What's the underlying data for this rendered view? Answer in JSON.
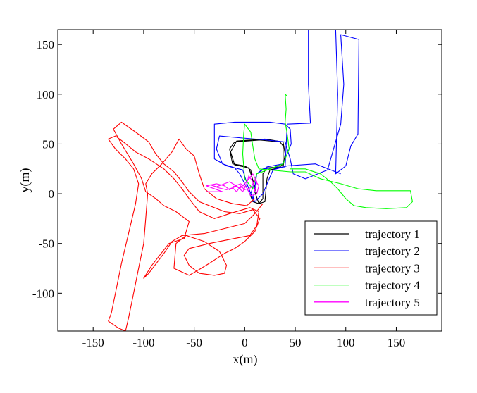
{
  "chart_data": {
    "type": "line",
    "xlabel": "x(m)",
    "ylabel": "y(m)",
    "xlim": [
      -185,
      195
    ],
    "ylim": [
      -138,
      165
    ],
    "xticks": [
      -150,
      -100,
      -50,
      0,
      50,
      100,
      150
    ],
    "yticks": [
      -100,
      -50,
      0,
      50,
      100,
      150
    ],
    "xtick_labels": [
      "-150",
      "-100",
      "-50",
      "0",
      "50",
      "100",
      "150"
    ],
    "ytick_labels": [
      "-100",
      "-50",
      "0",
      "50",
      "100",
      "150"
    ],
    "grid": false,
    "legend_position": "bottom-right",
    "series": [
      {
        "name": "trajectory 1",
        "color": "#000000",
        "points": [
          [
            5,
            0
          ],
          [
            8,
            -8
          ],
          [
            14,
            -10
          ],
          [
            18,
            -5
          ],
          [
            18,
            20
          ],
          [
            22,
            26
          ],
          [
            35,
            27
          ],
          [
            38,
            30
          ],
          [
            38,
            48
          ],
          [
            35,
            52
          ],
          [
            15,
            54
          ],
          [
            -10,
            52
          ],
          [
            -15,
            45
          ],
          [
            -12,
            30
          ],
          [
            0,
            28
          ],
          [
            6,
            24
          ],
          [
            8,
            12
          ],
          [
            10,
            2
          ],
          [
            14,
            -10
          ],
          [
            20,
            -8
          ],
          [
            22,
            15
          ],
          [
            25,
            24
          ],
          [
            38,
            27
          ],
          [
            40,
            40
          ],
          [
            38,
            52
          ],
          [
            20,
            55
          ],
          [
            -8,
            53
          ],
          [
            -14,
            42
          ],
          [
            -10,
            29
          ],
          [
            4,
            26
          ],
          [
            8,
            14
          ],
          [
            12,
            0
          ]
        ]
      },
      {
        "name": "trajectory 2",
        "color": "#0000ff",
        "points": [
          [
            8,
            -8
          ],
          [
            12,
            20
          ],
          [
            18,
            25
          ],
          [
            40,
            27
          ],
          [
            42,
            70
          ],
          [
            65,
            71
          ],
          [
            63,
            110
          ],
          [
            63,
            165
          ],
          [
            90,
            165
          ],
          [
            92,
            100
          ],
          [
            90,
            20
          ],
          [
            100,
            28
          ],
          [
            105,
            48
          ],
          [
            112,
            60
          ],
          [
            113,
            155
          ],
          [
            95,
            160
          ],
          [
            98,
            110
          ],
          [
            95,
            70
          ],
          [
            82,
            24
          ],
          [
            60,
            15
          ],
          [
            48,
            20
          ],
          [
            45,
            35
          ],
          [
            40,
            52
          ],
          [
            22,
            54
          ],
          [
            -2,
            56
          ],
          [
            -25,
            58
          ],
          [
            -28,
            45
          ],
          [
            -22,
            30
          ],
          [
            -10,
            26
          ],
          [
            -5,
            20
          ],
          [
            0,
            10
          ],
          [
            5,
            0
          ],
          [
            8,
            -5
          ],
          [
            3,
            8
          ],
          [
            -2,
            24
          ],
          [
            -18,
            28
          ],
          [
            -30,
            35
          ],
          [
            -30,
            70
          ],
          [
            -10,
            72
          ],
          [
            25,
            72
          ],
          [
            40,
            70
          ],
          [
            45,
            65
          ],
          [
            46,
            50
          ],
          [
            38,
            30
          ],
          [
            22,
            27
          ],
          [
            12,
            20
          ],
          [
            6,
            0
          ],
          [
            10,
            -8
          ],
          [
            18,
            0
          ],
          [
            28,
            24
          ],
          [
            42,
            28
          ],
          [
            70,
            30
          ],
          [
            95,
            20
          ]
        ]
      },
      {
        "name": "trajectory 3",
        "color": "#ff0000",
        "points": [
          [
            18,
            -10
          ],
          [
            10,
            -20
          ],
          [
            0,
            -30
          ],
          [
            -20,
            -35
          ],
          [
            -40,
            -40
          ],
          [
            -62,
            -42
          ],
          [
            -72,
            -48
          ],
          [
            -80,
            -60
          ],
          [
            -95,
            -80
          ],
          [
            -100,
            -85
          ],
          [
            -92,
            -72
          ],
          [
            -75,
            -50
          ],
          [
            -60,
            -45
          ],
          [
            -55,
            -28
          ],
          [
            -68,
            -18
          ],
          [
            -80,
            -12
          ],
          [
            -88,
            -5
          ],
          [
            -98,
            2
          ],
          [
            -102,
            15
          ],
          [
            -110,
            30
          ],
          [
            -122,
            50
          ],
          [
            -130,
            65
          ],
          [
            -122,
            72
          ],
          [
            -108,
            62
          ],
          [
            -95,
            52
          ],
          [
            -88,
            40
          ],
          [
            -80,
            30
          ],
          [
            -70,
            22
          ],
          [
            -62,
            12
          ],
          [
            -55,
            2
          ],
          [
            -45,
            -8
          ],
          [
            -35,
            -12
          ],
          [
            -20,
            -18
          ],
          [
            -5,
            -20
          ],
          [
            8,
            -16
          ],
          [
            15,
            -25
          ],
          [
            10,
            -38
          ],
          [
            0,
            -48
          ],
          [
            -10,
            -55
          ],
          [
            -20,
            -60
          ],
          [
            -35,
            -70
          ],
          [
            -48,
            -78
          ],
          [
            -55,
            -82
          ],
          [
            -70,
            -75
          ],
          [
            -68,
            -50
          ],
          [
            -58,
            -42
          ],
          [
            -40,
            -48
          ],
          [
            -25,
            -58
          ],
          [
            -18,
            -72
          ],
          [
            -20,
            -80
          ],
          [
            -30,
            -82
          ],
          [
            -45,
            -80
          ],
          [
            -55,
            -72
          ],
          [
            -60,
            -62
          ],
          [
            -55,
            -55
          ],
          [
            -35,
            -50
          ],
          [
            -10,
            -45
          ],
          [
            5,
            -42
          ],
          [
            12,
            -32
          ],
          [
            14,
            -18
          ],
          [
            5,
            -14
          ],
          [
            -15,
            -20
          ],
          [
            -30,
            -25
          ],
          [
            -45,
            -18
          ],
          [
            -55,
            -5
          ],
          [
            -62,
            5
          ],
          [
            -70,
            15
          ],
          [
            -80,
            25
          ],
          [
            -95,
            35
          ],
          [
            -108,
            42
          ],
          [
            -120,
            52
          ],
          [
            -128,
            58
          ],
          [
            -135,
            55
          ],
          [
            -128,
            45
          ],
          [
            -118,
            35
          ],
          [
            -110,
            25
          ],
          [
            -105,
            10
          ],
          [
            -108,
            -10
          ],
          [
            -115,
            -40
          ],
          [
            -122,
            -70
          ],
          [
            -128,
            -100
          ],
          [
            -132,
            -120
          ],
          [
            -135,
            -128
          ],
          [
            -125,
            -135
          ],
          [
            -118,
            -138
          ],
          [
            -115,
            -125
          ],
          [
            -110,
            -100
          ],
          [
            -105,
            -75
          ],
          [
            -100,
            -50
          ],
          [
            -98,
            -25
          ],
          [
            -96,
            0
          ],
          [
            -98,
            10
          ],
          [
            -92,
            20
          ],
          [
            -82,
            30
          ],
          [
            -72,
            42
          ],
          [
            -65,
            55
          ],
          [
            -58,
            45
          ],
          [
            -50,
            38
          ],
          [
            -45,
            20
          ],
          [
            -40,
            5
          ],
          [
            -28,
            -5
          ],
          [
            -12,
            -10
          ],
          [
            2,
            -12
          ],
          [
            10,
            -5
          ]
        ]
      },
      {
        "name": "trajectory 4",
        "color": "#00ff00",
        "points": [
          [
            42,
            98
          ],
          [
            40,
            100
          ],
          [
            41,
            85
          ],
          [
            40,
            72
          ],
          [
            42,
            60
          ],
          [
            44,
            45
          ],
          [
            38,
            30
          ],
          [
            25,
            25
          ],
          [
            12,
            20
          ],
          [
            8,
            5
          ],
          [
            0,
            15
          ],
          [
            -2,
            40
          ],
          [
            -1,
            60
          ],
          [
            0,
            70
          ],
          [
            6,
            62
          ],
          [
            8,
            48
          ],
          [
            10,
            35
          ],
          [
            14,
            25
          ],
          [
            24,
            24
          ],
          [
            45,
            22
          ],
          [
            60,
            22
          ],
          [
            75,
            15
          ],
          [
            95,
            10
          ],
          [
            112,
            5
          ],
          [
            130,
            3
          ],
          [
            150,
            3
          ],
          [
            164,
            3
          ],
          [
            166,
            -8
          ],
          [
            160,
            -14
          ],
          [
            140,
            -15
          ],
          [
            120,
            -14
          ],
          [
            108,
            -12
          ],
          [
            100,
            -5
          ],
          [
            92,
            5
          ],
          [
            85,
            12
          ],
          [
            75,
            20
          ],
          [
            60,
            25
          ],
          [
            45,
            25
          ]
        ]
      },
      {
        "name": "trajectory 5",
        "color": "#ff00ff",
        "points": [
          [
            -38,
            2
          ],
          [
            -22,
            2
          ],
          [
            -38,
            8
          ],
          [
            -28,
            10
          ],
          [
            -20,
            8
          ],
          [
            -15,
            4
          ],
          [
            -8,
            8
          ],
          [
            -2,
            2
          ],
          [
            2,
            10
          ],
          [
            4,
            18
          ],
          [
            8,
            12
          ],
          [
            10,
            2
          ],
          [
            12,
            12
          ],
          [
            8,
            20
          ],
          [
            5,
            16
          ],
          [
            0,
            10
          ],
          [
            -5,
            5
          ],
          [
            -10,
            9
          ],
          [
            -15,
            12
          ],
          [
            -20,
            10
          ],
          [
            -28,
            7
          ],
          [
            -34,
            9
          ],
          [
            -26,
            6
          ],
          [
            -18,
            4
          ],
          [
            -12,
            6
          ],
          [
            -8,
            2
          ],
          [
            -4,
            8
          ],
          [
            0,
            4
          ],
          [
            6,
            6
          ],
          [
            10,
            14
          ],
          [
            14,
            8
          ],
          [
            12,
            0
          ],
          [
            6,
            -2
          ],
          [
            2,
            6
          ],
          [
            -4,
            10
          ],
          [
            -12,
            7
          ]
        ]
      }
    ]
  }
}
